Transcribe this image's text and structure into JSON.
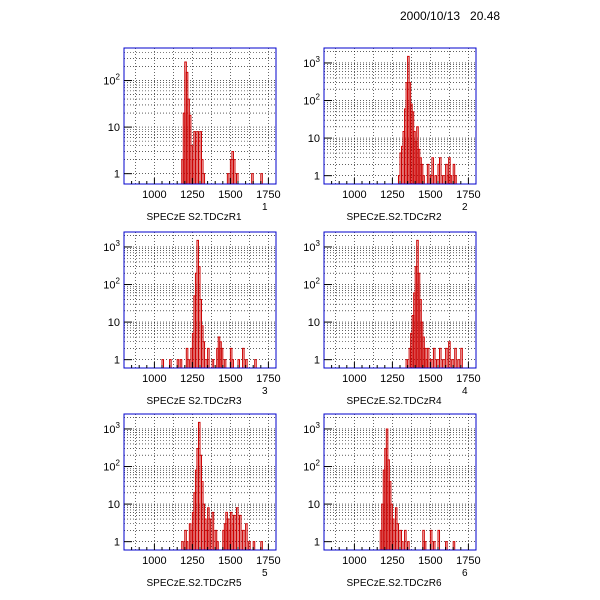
{
  "header": {
    "timestamp": "2000/10/13   20.48"
  },
  "colors": {
    "frame": "#0000cc",
    "histogram": "#cc0000",
    "grid": "#000000"
  },
  "chart_data": [
    {
      "type": "histogram",
      "index_label": "1",
      "title": "SPECzE S2.TDCzR1",
      "xlim": [
        800,
        1800
      ],
      "ylim_log": [
        0.6,
        500
      ],
      "log_y": true,
      "grid": true,
      "x_ticks": [
        1000,
        1250,
        1500,
        1750
      ],
      "y_ticks": [
        {
          "v": 1,
          "t": "1"
        },
        {
          "v": 10,
          "t": "10"
        },
        {
          "v": 100,
          "t": "10^2"
        }
      ],
      "bins": [
        [
          1180,
          2
        ],
        [
          1190,
          20
        ],
        [
          1200,
          250
        ],
        [
          1210,
          150
        ],
        [
          1220,
          40
        ],
        [
          1230,
          18
        ],
        [
          1240,
          4
        ],
        [
          1250,
          2
        ],
        [
          1260,
          8
        ],
        [
          1270,
          5
        ],
        [
          1280,
          8
        ],
        [
          1290,
          5
        ],
        [
          1300,
          8
        ],
        [
          1310,
          2
        ],
        [
          1320,
          1
        ],
        [
          1480,
          1
        ],
        [
          1500,
          2
        ],
        [
          1510,
          3
        ],
        [
          1520,
          2
        ],
        [
          1540,
          1
        ],
        [
          1640,
          1
        ],
        [
          1700,
          1
        ]
      ]
    },
    {
      "type": "histogram",
      "index_label": "2",
      "title": "SPECzE.S2.TDCzR2",
      "xlim": [
        800,
        1800
      ],
      "ylim_log": [
        0.6,
        2500
      ],
      "log_y": true,
      "grid": true,
      "x_ticks": [
        1000,
        1250,
        1500,
        1750
      ],
      "y_ticks": [
        {
          "v": 1,
          "t": "1"
        },
        {
          "v": 10,
          "t": "10"
        },
        {
          "v": 100,
          "t": "10^2"
        },
        {
          "v": 1000,
          "t": "10^3"
        }
      ],
      "bins": [
        [
          1290,
          1
        ],
        [
          1300,
          4
        ],
        [
          1310,
          6
        ],
        [
          1320,
          15
        ],
        [
          1330,
          60
        ],
        [
          1340,
          300
        ],
        [
          1350,
          1500
        ],
        [
          1360,
          300
        ],
        [
          1370,
          80
        ],
        [
          1380,
          50
        ],
        [
          1390,
          15
        ],
        [
          1400,
          8
        ],
        [
          1410,
          20
        ],
        [
          1420,
          5
        ],
        [
          1430,
          3
        ],
        [
          1440,
          2
        ],
        [
          1450,
          1
        ],
        [
          1480,
          2
        ],
        [
          1500,
          1
        ],
        [
          1510,
          3
        ],
        [
          1530,
          1
        ],
        [
          1550,
          2
        ],
        [
          1560,
          3
        ],
        [
          1580,
          1
        ],
        [
          1600,
          2
        ],
        [
          1610,
          1
        ],
        [
          1620,
          3
        ],
        [
          1630,
          1
        ],
        [
          1650,
          2
        ],
        [
          1660,
          1
        ]
      ]
    },
    {
      "type": "histogram",
      "index_label": "3",
      "title": "SPECzE S2.TDCzR3",
      "xlim": [
        800,
        1800
      ],
      "ylim_log": [
        0.6,
        2500
      ],
      "log_y": true,
      "grid": true,
      "x_ticks": [
        1000,
        1250,
        1500,
        1750
      ],
      "y_ticks": [
        {
          "v": 1,
          "t": "1"
        },
        {
          "v": 10,
          "t": "10"
        },
        {
          "v": 100,
          "t": "10^2"
        },
        {
          "v": 1000,
          "t": "10^3"
        }
      ],
      "bins": [
        [
          1050,
          1
        ],
        [
          1100,
          1
        ],
        [
          1150,
          1
        ],
        [
          1170,
          1
        ],
        [
          1210,
          2
        ],
        [
          1220,
          1
        ],
        [
          1240,
          2
        ],
        [
          1250,
          5
        ],
        [
          1260,
          50
        ],
        [
          1270,
          200
        ],
        [
          1280,
          1500
        ],
        [
          1290,
          300
        ],
        [
          1300,
          40
        ],
        [
          1310,
          8
        ],
        [
          1320,
          3
        ],
        [
          1340,
          1
        ],
        [
          1350,
          2
        ],
        [
          1380,
          1
        ],
        [
          1410,
          2
        ],
        [
          1420,
          4
        ],
        [
          1430,
          3
        ],
        [
          1440,
          2
        ],
        [
          1460,
          1
        ],
        [
          1500,
          2
        ],
        [
          1510,
          1
        ],
        [
          1550,
          1
        ],
        [
          1580,
          2
        ],
        [
          1600,
          1
        ],
        [
          1660,
          1
        ]
      ]
    },
    {
      "type": "histogram",
      "index_label": "4",
      "title": "SPECzE.S2.TDCzR4",
      "xlim": [
        800,
        1800
      ],
      "ylim_log": [
        0.6,
        2500
      ],
      "log_y": true,
      "grid": true,
      "x_ticks": [
        1000,
        1250,
        1500,
        1750
      ],
      "y_ticks": [
        {
          "v": 1,
          "t": "1"
        },
        {
          "v": 10,
          "t": "10"
        },
        {
          "v": 100,
          "t": "10^2"
        },
        {
          "v": 1000,
          "t": "10^3"
        }
      ],
      "bins": [
        [
          1340,
          1
        ],
        [
          1360,
          2
        ],
        [
          1370,
          5
        ],
        [
          1380,
          15
        ],
        [
          1390,
          60
        ],
        [
          1400,
          300
        ],
        [
          1410,
          1500
        ],
        [
          1420,
          200
        ],
        [
          1430,
          40
        ],
        [
          1440,
          10
        ],
        [
          1450,
          4
        ],
        [
          1460,
          2
        ],
        [
          1470,
          1
        ],
        [
          1480,
          2
        ],
        [
          1500,
          1
        ],
        [
          1520,
          2
        ],
        [
          1540,
          1
        ],
        [
          1560,
          2
        ],
        [
          1580,
          1
        ],
        [
          1600,
          2
        ],
        [
          1620,
          3
        ],
        [
          1640,
          1
        ],
        [
          1660,
          2
        ],
        [
          1680,
          1
        ],
        [
          1700,
          2
        ]
      ]
    },
    {
      "type": "histogram",
      "index_label": "5",
      "title": "SPECzE.S2.TDCzR5",
      "xlim": [
        800,
        1800
      ],
      "ylim_log": [
        0.6,
        2500
      ],
      "log_y": true,
      "grid": true,
      "x_ticks": [
        1000,
        1250,
        1500,
        1750
      ],
      "y_ticks": [
        {
          "v": 1,
          "t": "1"
        },
        {
          "v": 10,
          "t": "10"
        },
        {
          "v": 100,
          "t": "10^2"
        },
        {
          "v": 1000,
          "t": "10^3"
        }
      ],
      "bins": [
        [
          1180,
          1
        ],
        [
          1200,
          2
        ],
        [
          1210,
          1
        ],
        [
          1230,
          3
        ],
        [
          1240,
          2
        ],
        [
          1250,
          6
        ],
        [
          1260,
          20
        ],
        [
          1270,
          80
        ],
        [
          1280,
          300
        ],
        [
          1290,
          1500
        ],
        [
          1300,
          200
        ],
        [
          1310,
          40
        ],
        [
          1320,
          10
        ],
        [
          1330,
          4
        ],
        [
          1340,
          2
        ],
        [
          1350,
          8
        ],
        [
          1360,
          4
        ],
        [
          1380,
          6
        ],
        [
          1400,
          2
        ],
        [
          1410,
          1
        ],
        [
          1450,
          2
        ],
        [
          1460,
          3
        ],
        [
          1470,
          6
        ],
        [
          1480,
          4
        ],
        [
          1490,
          2
        ],
        [
          1500,
          6
        ],
        [
          1510,
          3
        ],
        [
          1520,
          5
        ],
        [
          1530,
          2
        ],
        [
          1540,
          8
        ],
        [
          1550,
          3
        ],
        [
          1560,
          5
        ],
        [
          1580,
          2
        ],
        [
          1600,
          3
        ],
        [
          1620,
          1
        ],
        [
          1650,
          1
        ],
        [
          1700,
          1
        ]
      ]
    },
    {
      "type": "histogram",
      "index_label": "6",
      "title": "SPECzE.S2.TDCzR6",
      "xlim": [
        800,
        1800
      ],
      "ylim_log": [
        0.6,
        2500
      ],
      "log_y": true,
      "grid": true,
      "x_ticks": [
        1000,
        1250,
        1500,
        1750
      ],
      "y_ticks": [
        {
          "v": 1,
          "t": "1"
        },
        {
          "v": 10,
          "t": "10"
        },
        {
          "v": 100,
          "t": "10^2"
        },
        {
          "v": 1000,
          "t": "10^3"
        }
      ],
      "bins": [
        [
          1170,
          2
        ],
        [
          1180,
          10
        ],
        [
          1190,
          80
        ],
        [
          1200,
          300
        ],
        [
          1210,
          1000
        ],
        [
          1220,
          150
        ],
        [
          1230,
          40
        ],
        [
          1240,
          10
        ],
        [
          1250,
          4
        ],
        [
          1260,
          2
        ],
        [
          1270,
          8
        ],
        [
          1280,
          3
        ],
        [
          1300,
          2
        ],
        [
          1310,
          1
        ],
        [
          1330,
          2
        ],
        [
          1350,
          1
        ],
        [
          1450,
          2
        ],
        [
          1460,
          1
        ],
        [
          1500,
          2
        ],
        [
          1520,
          1
        ],
        [
          1550,
          2
        ],
        [
          1600,
          1
        ],
        [
          1650,
          1
        ]
      ]
    }
  ]
}
